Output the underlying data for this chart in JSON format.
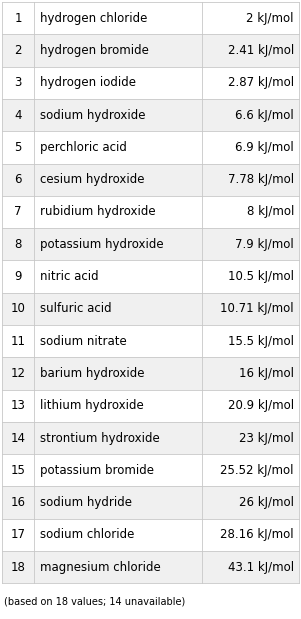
{
  "rows": [
    {
      "rank": "1",
      "name": "hydrogen chloride",
      "value": "2 kJ/mol"
    },
    {
      "rank": "2",
      "name": "hydrogen bromide",
      "value": "2.41 kJ/mol"
    },
    {
      "rank": "3",
      "name": "hydrogen iodide",
      "value": "2.87 kJ/mol"
    },
    {
      "rank": "4",
      "name": "sodium hydroxide",
      "value": "6.6 kJ/mol"
    },
    {
      "rank": "5",
      "name": "perchloric acid",
      "value": "6.9 kJ/mol"
    },
    {
      "rank": "6",
      "name": "cesium hydroxide",
      "value": "7.78 kJ/mol"
    },
    {
      "rank": "7",
      "name": "rubidium hydroxide",
      "value": "8 kJ/mol"
    },
    {
      "rank": "8",
      "name": "potassium hydroxide",
      "value": "7.9 kJ/mol"
    },
    {
      "rank": "9",
      "name": "nitric acid",
      "value": "10.5 kJ/mol"
    },
    {
      "rank": "10",
      "name": "sulfuric acid",
      "value": "10.71 kJ/mol"
    },
    {
      "rank": "11",
      "name": "sodium nitrate",
      "value": "15.5 kJ/mol"
    },
    {
      "rank": "12",
      "name": "barium hydroxide",
      "value": "16 kJ/mol"
    },
    {
      "rank": "13",
      "name": "lithium hydroxide",
      "value": "20.9 kJ/mol"
    },
    {
      "rank": "14",
      "name": "strontium hydroxide",
      "value": "23 kJ/mol"
    },
    {
      "rank": "15",
      "name": "potassium bromide",
      "value": "25.52 kJ/mol"
    },
    {
      "rank": "16",
      "name": "sodium hydride",
      "value": "26 kJ/mol"
    },
    {
      "rank": "17",
      "name": "sodium chloride",
      "value": "28.16 kJ/mol"
    },
    {
      "rank": "18",
      "name": "magnesium chloride",
      "value": "43.1 kJ/mol"
    }
  ],
  "footer": "(based on 18 values; 14 unavailable)",
  "bg_color": "#ffffff",
  "row_even_color": "#ffffff",
  "row_odd_color": "#f0f0f0",
  "border_color": "#c8c8c8",
  "text_color": "#000000",
  "rank_fontsize": 8.5,
  "name_fontsize": 8.5,
  "value_fontsize": 8.5,
  "footer_fontsize": 7.0,
  "fig_width": 3.01,
  "fig_height": 6.19,
  "dpi": 100
}
